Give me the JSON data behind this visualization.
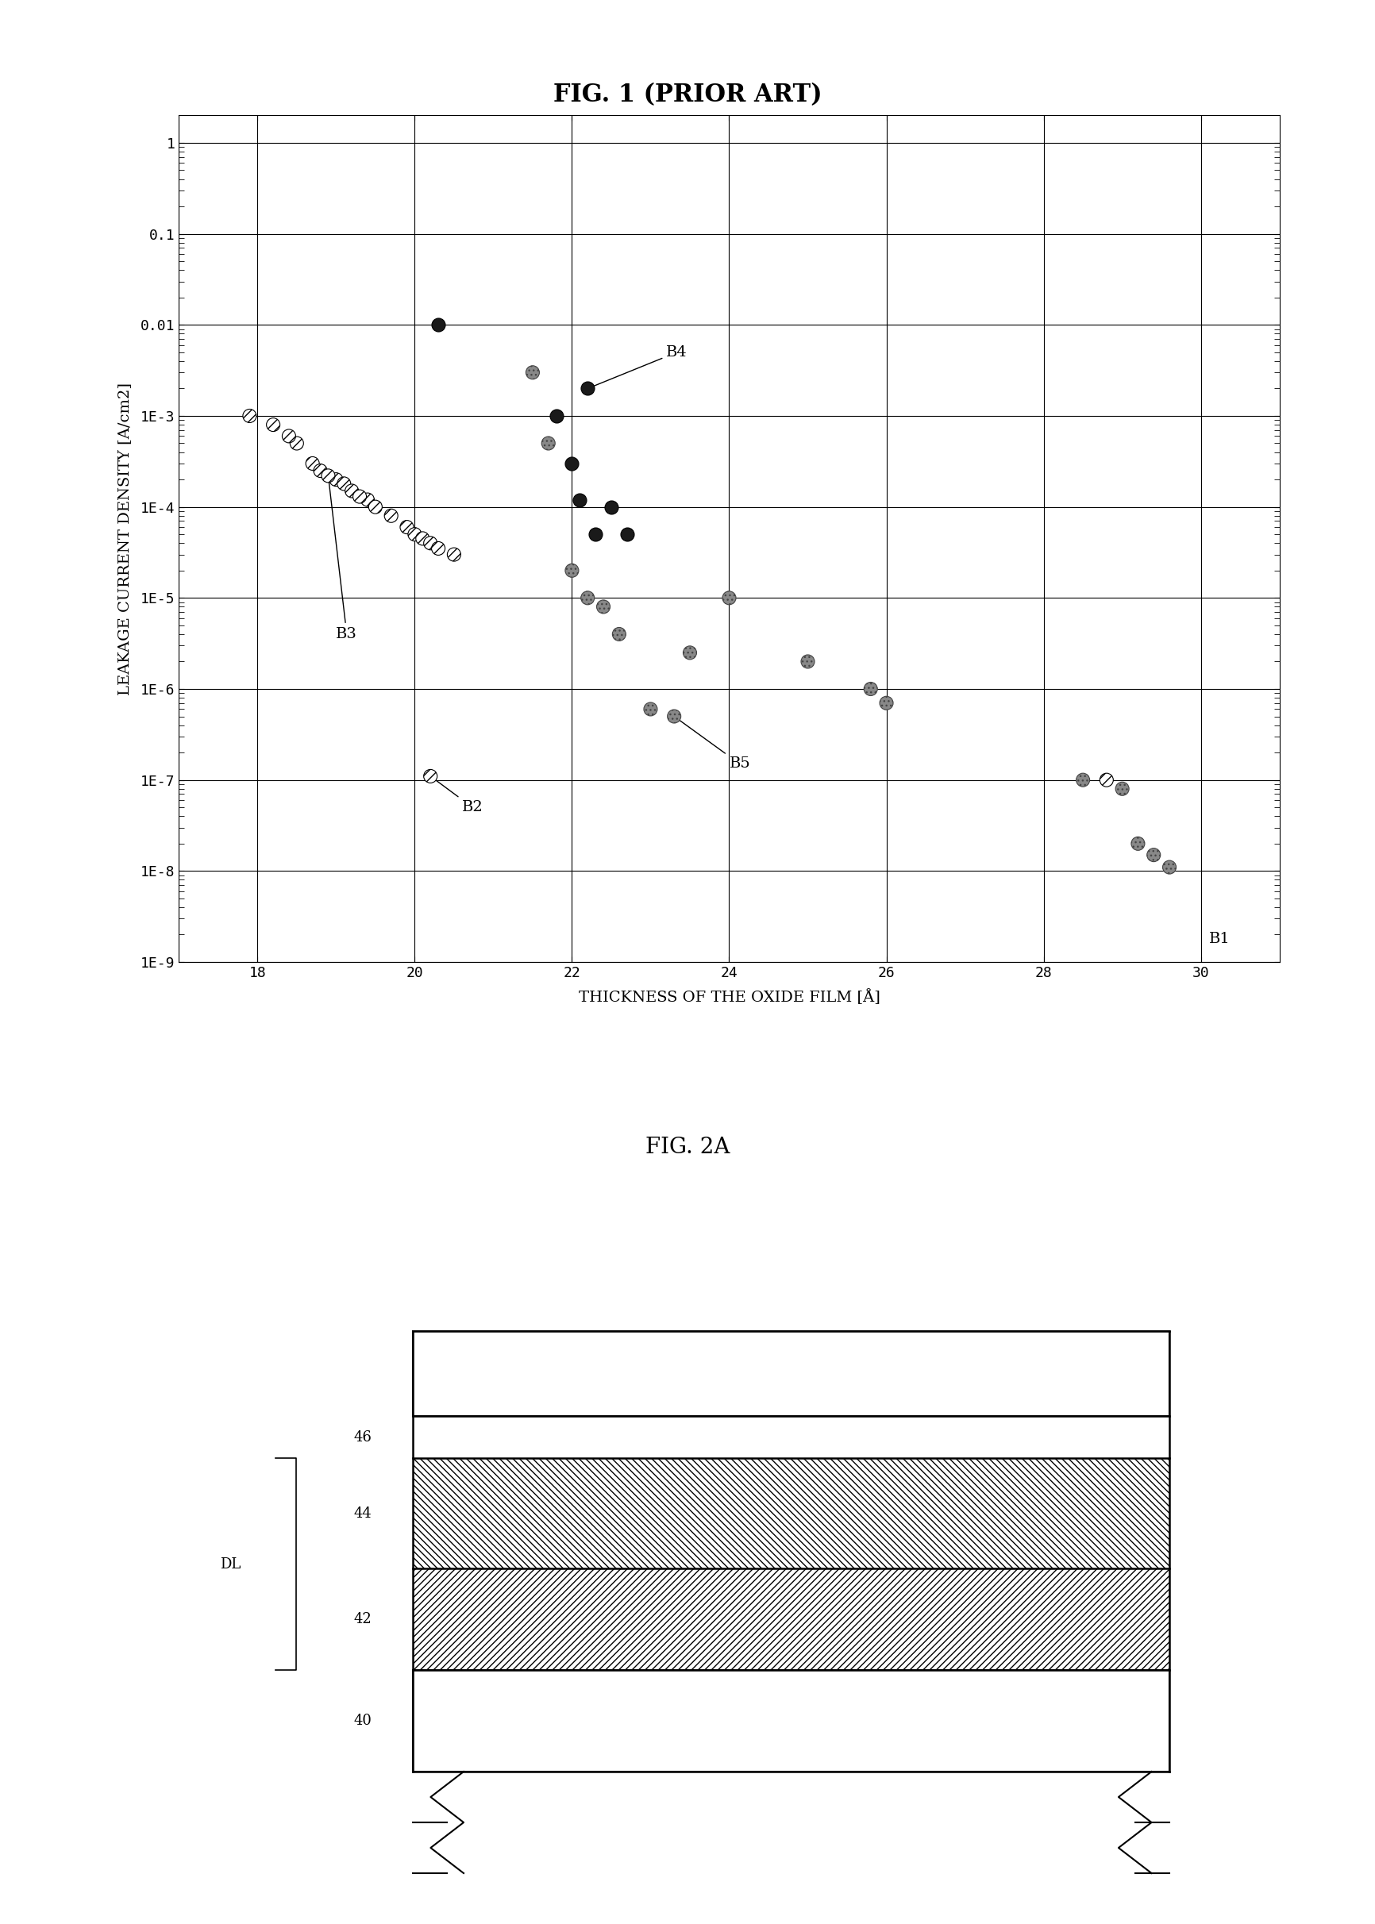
{
  "fig1_title": "FIG. 1 (PRIOR ART)",
  "fig2_title": "FIG. 2A",
  "xlabel": "THICKNESS OF THE OXIDE FILM [Å]",
  "ylabel": "LEAKAGE CURRENT DENSITY [A/cm2]",
  "xlim": [
    17,
    31
  ],
  "xticks": [
    18,
    20,
    22,
    24,
    26,
    28,
    30
  ],
  "ytick_labels": [
    "1E-9",
    "1E-8",
    "1E-7",
    "1E-6",
    "1E-5",
    "1E-4",
    "1E-3",
    "0.01",
    "0.1",
    "1"
  ],
  "ytick_values": [
    1e-09,
    1e-08,
    1e-07,
    1e-06,
    1e-05,
    0.0001,
    0.001,
    0.01,
    0.1,
    1
  ],
  "b3_points": [
    [
      17.9,
      0.001
    ],
    [
      18.2,
      0.0008
    ],
    [
      18.5,
      0.0005
    ],
    [
      18.7,
      0.0003
    ],
    [
      18.8,
      0.00025
    ],
    [
      19.0,
      0.0002
    ],
    [
      19.1,
      0.00018
    ],
    [
      19.2,
      0.00015
    ],
    [
      19.4,
      0.00012
    ],
    [
      19.5,
      0.0001
    ],
    [
      19.7,
      8e-05
    ],
    [
      19.9,
      6e-05
    ],
    [
      20.0,
      5e-05
    ],
    [
      20.1,
      4.5e-05
    ],
    [
      20.2,
      4e-05
    ],
    [
      20.3,
      3.5e-05
    ],
    [
      20.5,
      3e-05
    ],
    [
      18.9,
      0.00022
    ],
    [
      19.3,
      0.00013
    ],
    [
      18.4,
      0.0006
    ]
  ],
  "b2_points": [
    [
      20.2,
      1.1e-07
    ]
  ],
  "b4_points": [
    [
      20.3,
      0.01
    ],
    [
      21.8,
      0.001
    ],
    [
      22.0,
      0.0003
    ],
    [
      22.1,
      0.00012
    ],
    [
      22.2,
      0.002
    ],
    [
      22.3,
      5e-05
    ],
    [
      22.5,
      0.0001
    ],
    [
      22.7,
      5e-05
    ]
  ],
  "b5_points": [
    [
      21.5,
      0.003
    ],
    [
      21.7,
      0.0005
    ],
    [
      22.0,
      2e-05
    ],
    [
      22.2,
      1e-05
    ],
    [
      22.4,
      8e-06
    ],
    [
      22.6,
      4e-06
    ],
    [
      23.0,
      6e-07
    ],
    [
      23.3,
      5e-07
    ],
    [
      23.5,
      2.5e-06
    ],
    [
      24.0,
      1e-05
    ],
    [
      25.0,
      2e-06
    ],
    [
      25.8,
      1e-06
    ],
    [
      26.0,
      7e-07
    ],
    [
      28.5,
      1e-07
    ],
    [
      29.0,
      8e-08
    ],
    [
      29.2,
      2e-08
    ],
    [
      29.4,
      1.5e-08
    ],
    [
      29.6,
      1.1e-08
    ]
  ],
  "b1_points": [
    [
      28.8,
      1e-07
    ]
  ],
  "background_color": "#ffffff"
}
